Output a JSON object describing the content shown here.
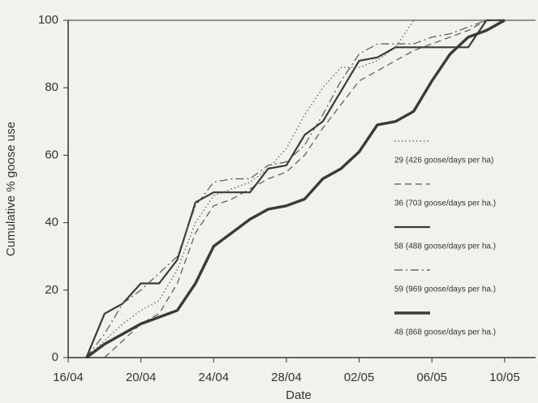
{
  "chart_data": {
    "type": "line",
    "xlabel": "Date",
    "ylabel": "Cumulative % goose use",
    "x": [
      1,
      2,
      3,
      4,
      5,
      6,
      7,
      8,
      9,
      10,
      11,
      12,
      13,
      14,
      15,
      16,
      17,
      18,
      19,
      20,
      21,
      22,
      23,
      24
    ],
    "xlim": [
      0,
      25.7
    ],
    "xticks": [
      {
        "value": 0,
        "label": "16/04"
      },
      {
        "value": 4,
        "label": "20/04"
      },
      {
        "value": 8,
        "label": "24/04"
      },
      {
        "value": 12,
        "label": "28/04"
      },
      {
        "value": 16,
        "label": "02/05"
      },
      {
        "value": 20,
        "label": "06/05"
      },
      {
        "value": 24,
        "label": "10/05"
      }
    ],
    "ylim": [
      0,
      100
    ],
    "yticks": [
      0,
      20,
      40,
      60,
      80,
      100
    ],
    "series": [
      {
        "name": "29 (426 goose/days per ha)",
        "color": "#555555",
        "dash": "dotted",
        "width": 1.2,
        "values": [
          0,
          5,
          10,
          14,
          17,
          26,
          40,
          48,
          50,
          52,
          56,
          62,
          72,
          80,
          86,
          86,
          88,
          92,
          100,
          100,
          100,
          100,
          100,
          100
        ]
      },
      {
        "name": "36 (703 goose/days per ha.)",
        "color": "#555555",
        "dash": "dashed",
        "width": 1.2,
        "values": [
          null,
          0,
          5,
          10,
          13,
          22,
          37,
          45,
          47,
          50,
          53,
          55,
          60,
          68,
          75,
          82,
          85,
          88,
          91,
          93,
          95,
          97,
          100,
          100
        ]
      },
      {
        "name": "58 (488 goose/days per ha.)",
        "color": "#3a3a3a",
        "dash": "solid",
        "width": 2.2,
        "values": [
          0,
          13,
          16,
          22,
          22,
          29,
          46,
          49,
          49,
          49,
          56,
          57,
          66,
          70,
          79,
          88,
          89,
          92,
          92,
          92,
          92,
          92,
          100,
          100
        ]
      },
      {
        "name": "59 (969 goose/days per ha.)",
        "color": "#555555",
        "dash": "dashdot",
        "width": 1.2,
        "values": [
          0,
          7,
          16,
          20,
          25,
          30,
          45,
          52,
          53,
          53,
          57,
          58,
          63,
          72,
          82,
          90,
          93,
          93,
          93,
          95,
          96,
          98,
          100,
          100
        ]
      },
      {
        "name": "48 (868 goose/days per ha.)",
        "color": "#3a3a3a",
        "dash": "solid",
        "width": 3.4,
        "values": [
          0,
          4,
          7,
          10,
          12,
          14,
          22,
          33,
          37,
          41,
          44,
          45,
          47,
          53,
          56,
          61,
          69,
          70,
          73,
          82,
          90,
          95,
          97,
          100
        ]
      }
    ]
  }
}
